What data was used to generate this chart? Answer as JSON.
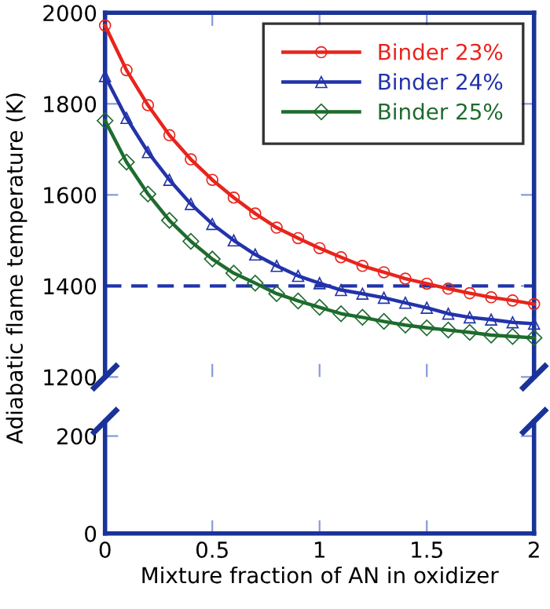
{
  "chart_data": [
    {
      "type": "line",
      "ylabel": "Adiabatic flame temperature (K)",
      "x": [
        0,
        0.1,
        0.2,
        0.3,
        0.4,
        0.5,
        0.6,
        0.7,
        0.8,
        0.9,
        1.0,
        1.1,
        1.2,
        1.3,
        1.4,
        1.5,
        1.6,
        1.7,
        1.8,
        1.9,
        2.0
      ],
      "series": [
        {
          "name": "Binder 23%",
          "color": "#e8241c",
          "marker": "circle",
          "values": [
            1972,
            1874,
            1797,
            1731,
            1678,
            1633,
            1594,
            1559,
            1528,
            1505,
            1483,
            1463,
            1444,
            1430,
            1416,
            1405,
            1394,
            1384,
            1375,
            1368,
            1360
          ]
        },
        {
          "name": "Binder 24%",
          "color": "#2233aa",
          "marker": "triangle",
          "values": [
            1861,
            1769,
            1694,
            1633,
            1580,
            1536,
            1500,
            1469,
            1444,
            1422,
            1406,
            1391,
            1383,
            1374,
            1363,
            1352,
            1339,
            1331,
            1326,
            1320,
            1317
          ]
        },
        {
          "name": "Binder 25%",
          "color": "#1e6b2e",
          "marker": "diamond",
          "values": [
            1763,
            1672,
            1602,
            1544,
            1498,
            1459,
            1428,
            1406,
            1383,
            1367,
            1353,
            1339,
            1331,
            1322,
            1314,
            1308,
            1303,
            1298,
            1292,
            1289,
            1286
          ]
        }
      ],
      "xlim": [
        0,
        2
      ],
      "xticks": [
        0,
        0.5,
        1,
        1.5,
        2
      ],
      "ylim": [
        1200,
        2000
      ],
      "yticks": [
        1200,
        1400,
        1600,
        1800,
        2000
      ],
      "tick_labels": "y",
      "legend": "top right",
      "grid": false,
      "line_style": "solid",
      "ref_lines": [
        {
          "axis": "y",
          "value": 1400,
          "color": "#2233aa",
          "line_style": "dashed"
        }
      ]
    },
    {
      "type": "line",
      "xlabel": "Mixture fraction of AN in oxidizer",
      "xlim": [
        0,
        2
      ],
      "xticks": [
        0,
        0.5,
        1,
        1.5,
        2
      ],
      "ylim": [
        0,
        230
      ],
      "yticks": [
        0,
        200
      ],
      "grid": false
    }
  ]
}
